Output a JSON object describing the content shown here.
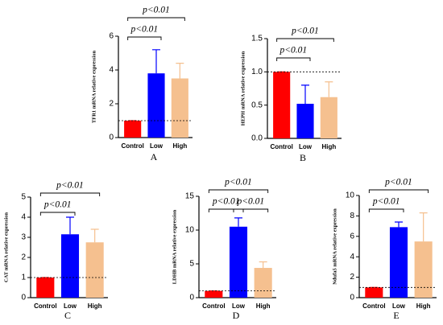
{
  "chart_data": [
    {
      "type": "bar",
      "panel": "A",
      "ylabel": "TFR1 mRNA relative expression",
      "categories": [
        "Control",
        "Low",
        "High"
      ],
      "values": [
        1,
        3.8,
        3.5
      ],
      "errors": [
        0,
        1.4,
        0.9
      ],
      "colors": [
        "#ff0000",
        "#0000ff",
        "#f5c08f"
      ],
      "ylim": [
        0,
        6
      ],
      "yticks": [
        0,
        2,
        4,
        6
      ],
      "reference_line": 1,
      "brackets": [
        [
          {
            "label": "p<0.01",
            "between": [
              "Control",
              "High"
            ]
          }
        ],
        [
          {
            "label": "p<0.01",
            "between": [
              "Control",
              "Low"
            ]
          }
        ]
      ]
    },
    {
      "type": "bar",
      "panel": "B",
      "ylabel": "HEPH mRNA relative expression",
      "categories": [
        "Control",
        "Low",
        "High"
      ],
      "values": [
        1,
        0.52,
        0.62
      ],
      "errors": [
        0,
        0.28,
        0.23
      ],
      "colors": [
        "#ff0000",
        "#0000ff",
        "#f5c08f"
      ],
      "ylim": [
        0,
        1.5
      ],
      "yticks": [
        {
          "value": 0,
          "label": "0.0"
        },
        0.5,
        {
          "value": 1,
          "label": "1.0"
        },
        1.5
      ],
      "reference_line": 1,
      "brackets": [
        [
          {
            "label": "p<0.01",
            "between": [
              "Control",
              "High"
            ]
          }
        ],
        [
          {
            "label": "p<0.01",
            "between": [
              "Control",
              "Low"
            ]
          }
        ]
      ]
    },
    {
      "type": "bar",
      "panel": "C",
      "ylabel": "CAT mRNA relative expression",
      "categories": [
        "Control",
        "Low",
        "High"
      ],
      "values": [
        1,
        3.15,
        2.75
      ],
      "errors": [
        0,
        0.85,
        0.65
      ],
      "colors": [
        "#ff0000",
        "#0000ff",
        "#f5c08f"
      ],
      "ylim": [
        0,
        5
      ],
      "yticks": [
        0,
        1,
        2,
        3,
        4,
        5
      ],
      "reference_line": 1,
      "brackets": [
        [
          {
            "label": "p<0.01",
            "between": [
              "Control",
              "High"
            ]
          }
        ],
        [
          {
            "label": "p<0.01",
            "between": [
              "Control",
              "Low"
            ]
          }
        ]
      ]
    },
    {
      "type": "bar",
      "panel": "D",
      "ylabel": "LDHB mRNA relative expression",
      "categories": [
        "Control",
        "Low",
        "High"
      ],
      "values": [
        1,
        10.5,
        4.4
      ],
      "errors": [
        0,
        1.3,
        0.9
      ],
      "colors": [
        "#ff0000",
        "#0000ff",
        "#f5c08f"
      ],
      "ylim": [
        0,
        15
      ],
      "yticks": [
        0,
        5,
        10,
        15
      ],
      "reference_line": 1,
      "brackets": [
        [
          {
            "label": "p<0.01",
            "between": [
              "Control",
              "High"
            ]
          }
        ],
        [
          {
            "label": "p<0.01",
            "between": [
              "Control",
              "Low"
            ]
          },
          {
            "label": "p<0.01",
            "between": [
              "Low",
              "High"
            ]
          }
        ]
      ]
    },
    {
      "type": "bar",
      "panel": "E",
      "ylabel": "Ndufa5 mRNA relative expression",
      "categories": [
        "Control",
        "Low",
        "High"
      ],
      "values": [
        1,
        6.9,
        5.5
      ],
      "errors": [
        0,
        0.5,
        2.8
      ],
      "colors": [
        "#ff0000",
        "#0000ff",
        "#f5c08f"
      ],
      "ylim": [
        0,
        10
      ],
      "yticks": [
        0,
        2,
        4,
        6,
        8,
        10
      ],
      "reference_line": 1,
      "brackets": [
        [
          {
            "label": "p<0.01",
            "between": [
              "Control",
              "High"
            ]
          }
        ],
        [
          {
            "label": "p<0.01",
            "between": [
              "Control",
              "Low"
            ]
          }
        ]
      ]
    }
  ]
}
